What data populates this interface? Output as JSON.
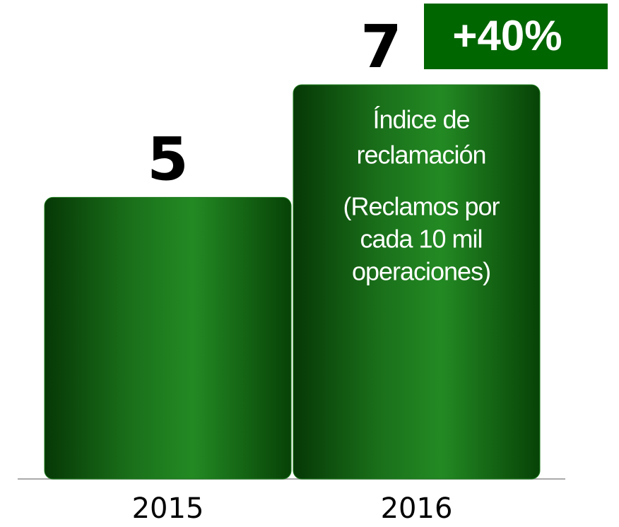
{
  "chart_data": {
    "type": "bar",
    "categories": [
      "2015",
      "2016"
    ],
    "values": [
      5,
      7
    ],
    "annotation": "+40%",
    "bar_text": [
      [
        "Índice de",
        "reclamación"
      ],
      [
        "(Reclamos por",
        "cada 10 mil",
        "operaciones)"
      ]
    ],
    "color": "#1a7a1a",
    "annotation_color": "#006600"
  }
}
